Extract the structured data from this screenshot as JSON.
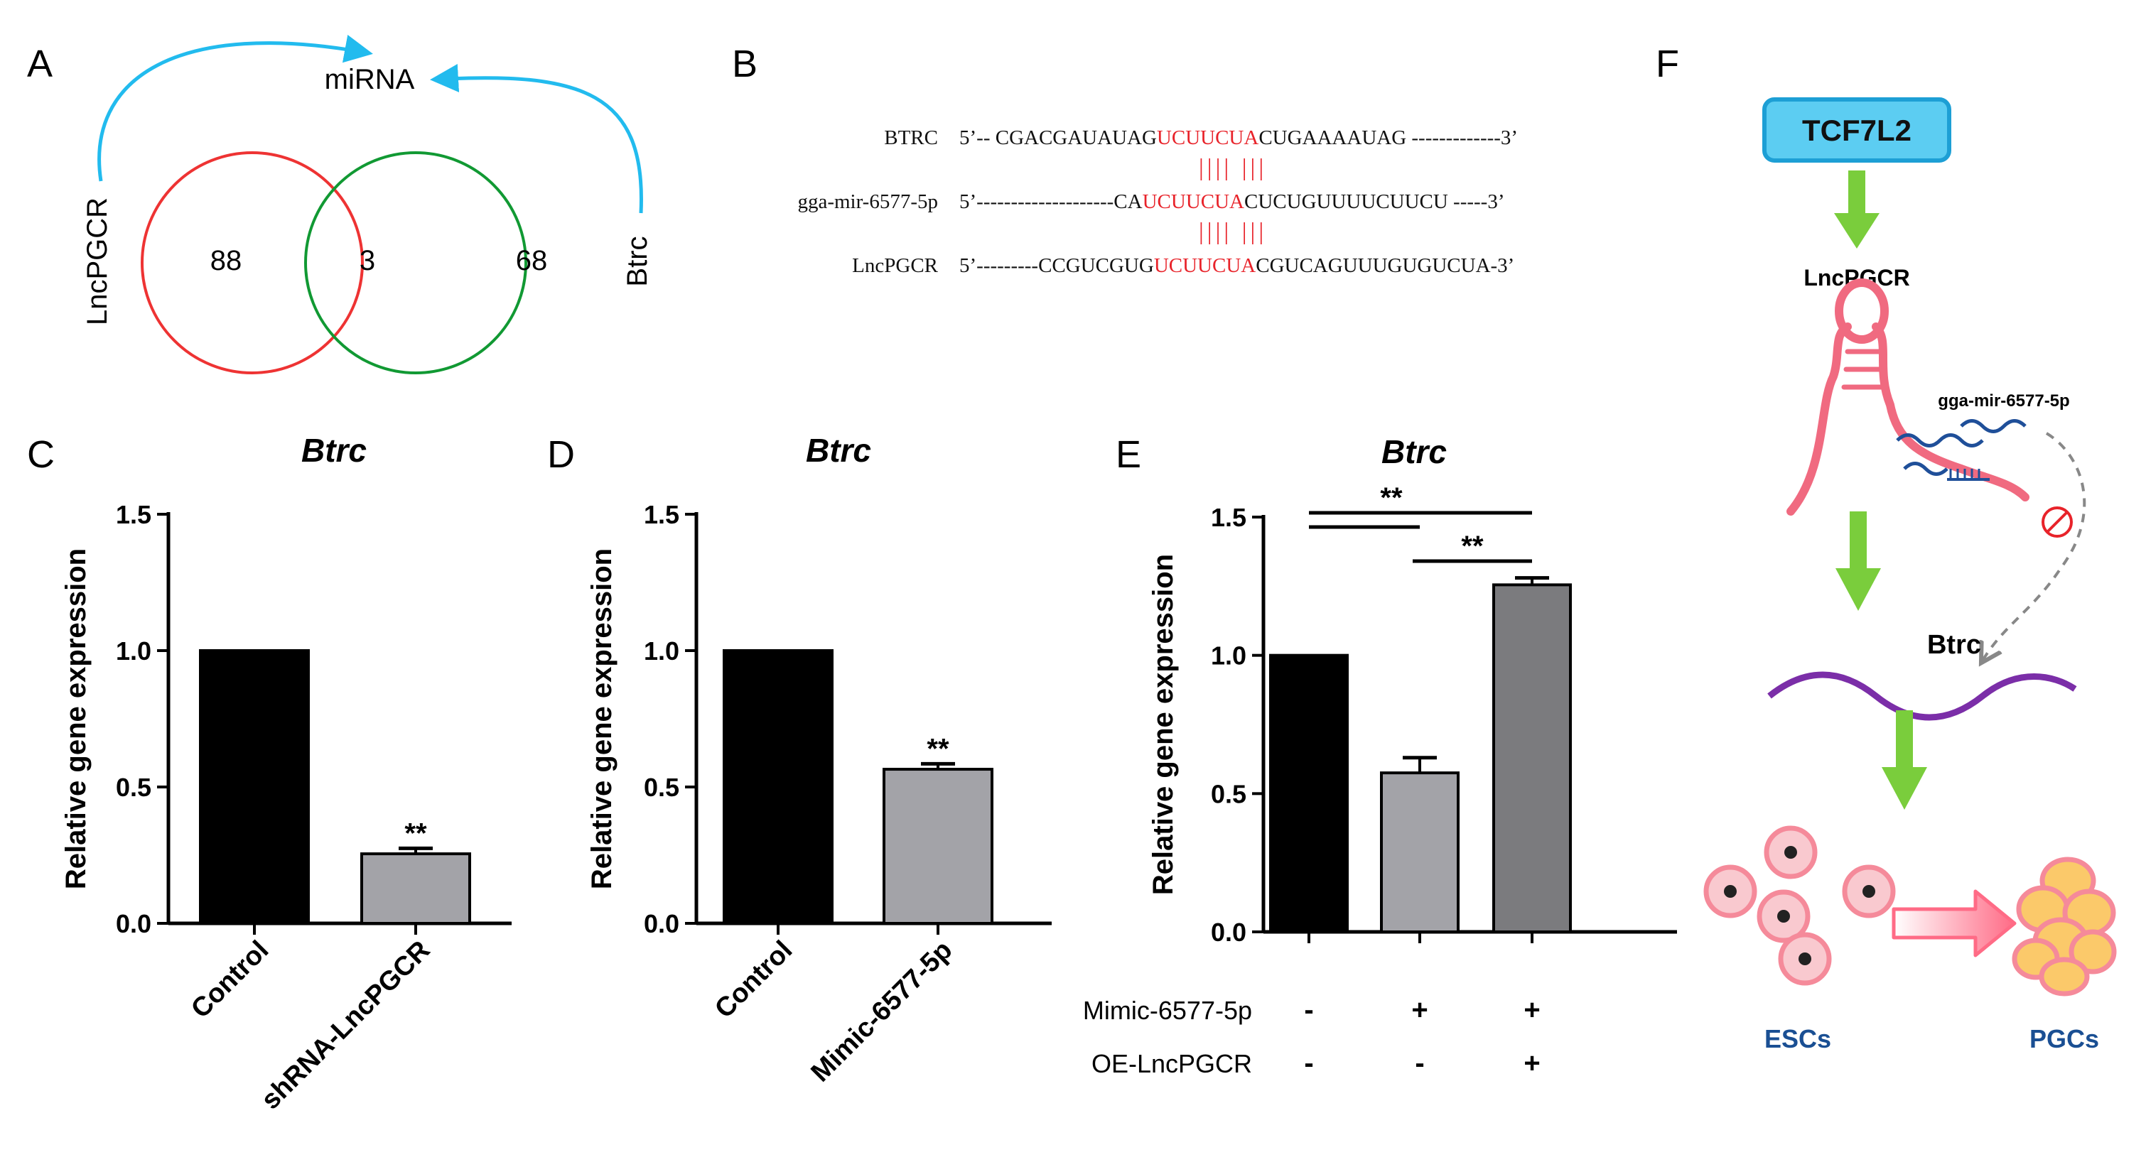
{
  "panel_labels": {
    "a": "A",
    "b": "B",
    "c": "C",
    "d": "D",
    "e": "E",
    "f": "F"
  },
  "venn": {
    "top_label": "miRNA",
    "left_set": "LncPGCR",
    "right_set": "Btrc",
    "left_only": "88",
    "overlap": "3",
    "right_only": "68",
    "left_color": "#ee3333",
    "right_color": "#119933",
    "arrow_color": "#22bbee"
  },
  "alignment": {
    "rows": [
      {
        "name": "BTRC",
        "pre": "5’-- CGACGAUAUAG",
        "seed": "UCUUCUA",
        "post": "CUGAAAAUAG -------------3’"
      },
      {
        "name": "gga-mir-6577-5p",
        "pre": "5’--------------------CA",
        "seed": "UCUUCUA",
        "post": "CUCUGUUUUCUUCU -----3’"
      },
      {
        "name": "LncPGCR",
        "pre": "5’---------CCGUCGUG",
        "seed": "UCUUCUA",
        "post": "CGUCAGUUUGUGUCUA-3’"
      }
    ],
    "pairing_marks": "|||| |||",
    "seed_color": "#e8232a"
  },
  "chart_data": [
    {
      "type": "bar",
      "panel": "C",
      "title": "Btrc",
      "ylabel": "Relative gene expression",
      "ylim": [
        0,
        1.5
      ],
      "yticks": [
        "0.0",
        "0.5",
        "1.0",
        "1.5"
      ],
      "categories": [
        "Control",
        "shRNA-LncPGCR"
      ],
      "values": [
        1.0,
        0.255
      ],
      "errors": [
        0,
        0.02
      ],
      "colors": [
        "#000000",
        "#a3a3a8"
      ],
      "significance": [
        "",
        "**"
      ]
    },
    {
      "type": "bar",
      "panel": "D",
      "title": "Btrc",
      "ylabel": "Relative gene expression",
      "ylim": [
        0,
        1.5
      ],
      "yticks": [
        "0.0",
        "0.5",
        "1.0",
        "1.5"
      ],
      "categories": [
        "Control",
        "Mimic-6577-5p"
      ],
      "values": [
        1.0,
        0.565
      ],
      "errors": [
        0,
        0.02
      ],
      "colors": [
        "#000000",
        "#a3a3a8"
      ],
      "significance": [
        "",
        "**"
      ]
    },
    {
      "type": "bar",
      "panel": "E",
      "title": "Btrc",
      "ylabel": "Relative gene expression",
      "ylim": [
        0,
        1.5
      ],
      "yticks": [
        "0.0",
        "0.5",
        "1.0",
        "1.5"
      ],
      "categories": [
        "",
        "",
        ""
      ],
      "values": [
        1.0,
        0.575,
        1.255
      ],
      "errors": [
        0,
        0.055,
        0.025
      ],
      "colors": [
        "#000000",
        "#a3a3a8",
        "#7b7b7e"
      ],
      "significance_brackets": [
        {
          "label": "**",
          "from": 0,
          "to": 2
        },
        {
          "label": "**",
          "from": 1,
          "to": 2
        }
      ],
      "conditions": [
        {
          "name": "Mimic-6577-5p",
          "values": [
            "-",
            "+",
            "+"
          ]
        },
        {
          "name": "OE-LncPGCR",
          "values": [
            "-",
            "-",
            "+"
          ]
        }
      ]
    }
  ],
  "pathway": {
    "tf": "TCF7L2",
    "lnc": "LncPGCR",
    "mirna": "gga-mir-6577-5p",
    "target": "Btrc",
    "source_cells": "ESCs",
    "target_cells": "PGCs",
    "tf_fill": "#5ccdf2",
    "arrow_green": "#7acd3c",
    "label_blue": "#1a4f93"
  }
}
